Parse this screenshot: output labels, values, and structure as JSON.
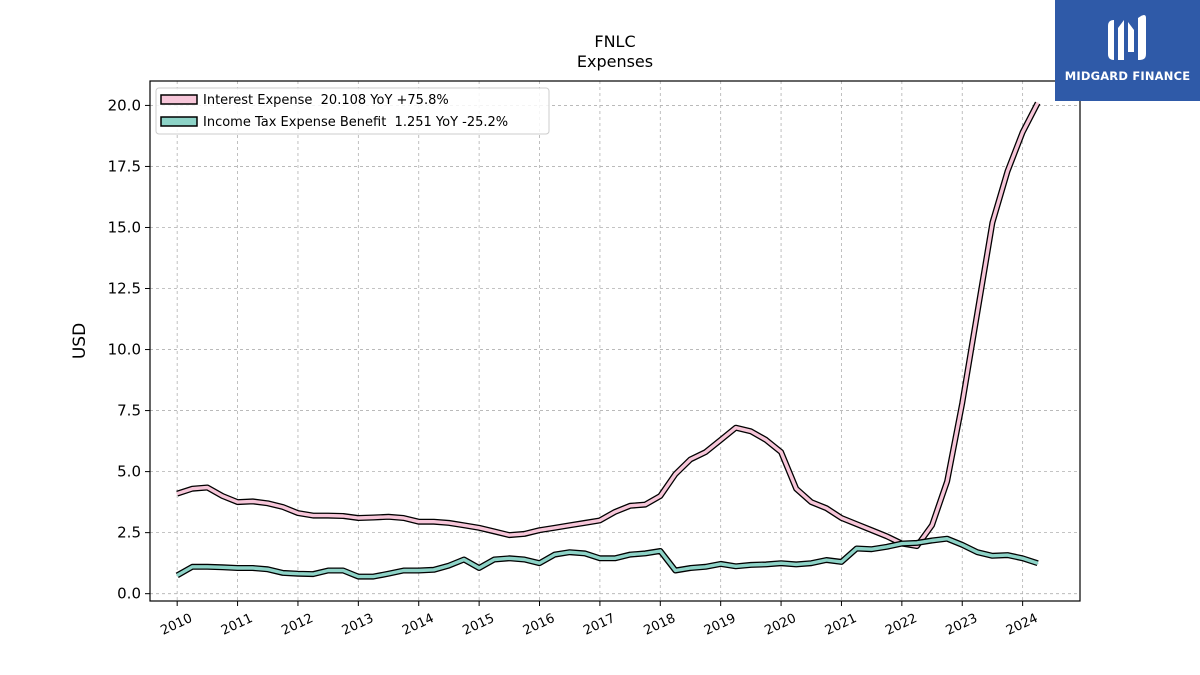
{
  "chart_data": {
    "type": "line",
    "title": "FNLC",
    "subtitle": "Expenses",
    "xlabel": "",
    "ylabel": "USD",
    "xlim": [
      2009.55,
      2024.95
    ],
    "ylim": [
      -0.3,
      21.0
    ],
    "y_ticks": [
      "0.0",
      "2.5",
      "5.0",
      "7.5",
      "10.0",
      "12.5",
      "15.0",
      "17.5",
      "20.0"
    ],
    "x_ticks": [
      "2010",
      "2011",
      "2012",
      "2013",
      "2014",
      "2015",
      "2016",
      "2017",
      "2018",
      "2019",
      "2020",
      "2021",
      "2022",
      "2023",
      "2024"
    ],
    "grid": true,
    "legend_position": "top-left",
    "series": [
      {
        "name": "Interest Expense",
        "legend": "Interest Expense  20.108 YoY +75.8%",
        "color": "#f7c6d9",
        "x": [
          2010.0,
          2010.25,
          2010.5,
          2010.75,
          2011.0,
          2011.25,
          2011.5,
          2011.75,
          2012.0,
          2012.25,
          2012.5,
          2012.75,
          2013.0,
          2013.25,
          2013.5,
          2013.75,
          2014.0,
          2014.25,
          2014.5,
          2014.75,
          2015.0,
          2015.25,
          2015.5,
          2015.75,
          2016.0,
          2016.25,
          2016.5,
          2016.75,
          2017.0,
          2017.25,
          2017.5,
          2017.75,
          2018.0,
          2018.25,
          2018.5,
          2018.75,
          2019.0,
          2019.25,
          2019.5,
          2019.75,
          2020.0,
          2020.25,
          2020.5,
          2020.75,
          2021.0,
          2021.25,
          2021.5,
          2021.75,
          2022.0,
          2022.25,
          2022.5,
          2022.75,
          2023.0,
          2023.25,
          2023.5,
          2023.75,
          2024.0,
          2024.25
        ],
        "values": [
          4.1,
          4.3,
          4.35,
          4.0,
          3.75,
          3.78,
          3.7,
          3.55,
          3.3,
          3.2,
          3.2,
          3.18,
          3.1,
          3.12,
          3.15,
          3.1,
          2.95,
          2.95,
          2.9,
          2.8,
          2.7,
          2.55,
          2.4,
          2.45,
          2.6,
          2.7,
          2.8,
          2.9,
          3.0,
          3.35,
          3.6,
          3.65,
          4.0,
          4.9,
          5.5,
          5.8,
          6.3,
          6.8,
          6.65,
          6.3,
          5.8,
          4.3,
          3.75,
          3.5,
          3.1,
          2.85,
          2.6,
          2.35,
          2.05,
          1.95,
          2.8,
          4.6,
          7.8,
          11.5,
          15.2,
          17.3,
          18.9,
          20.1
        ]
      },
      {
        "name": "Income Tax Expense Benefit",
        "legend": "Income Tax Expense Benefit  1.251 YoY -25.2%",
        "color": "#8dd3c7",
        "x": [
          2010.0,
          2010.25,
          2010.5,
          2010.75,
          2011.0,
          2011.25,
          2011.5,
          2011.75,
          2012.0,
          2012.25,
          2012.5,
          2012.75,
          2013.0,
          2013.25,
          2013.5,
          2013.75,
          2014.0,
          2014.25,
          2014.5,
          2014.75,
          2015.0,
          2015.25,
          2015.5,
          2015.75,
          2016.0,
          2016.25,
          2016.5,
          2016.75,
          2017.0,
          2017.25,
          2017.5,
          2017.75,
          2018.0,
          2018.25,
          2018.5,
          2018.75,
          2019.0,
          2019.25,
          2019.5,
          2019.75,
          2020.0,
          2020.25,
          2020.5,
          2020.75,
          2021.0,
          2021.25,
          2021.5,
          2021.75,
          2022.0,
          2022.25,
          2022.5,
          2022.75,
          2023.0,
          2023.25,
          2023.5,
          2023.75,
          2024.0,
          2024.25
        ],
        "values": [
          0.75,
          1.1,
          1.1,
          1.08,
          1.05,
          1.05,
          1.0,
          0.85,
          0.82,
          0.8,
          0.95,
          0.95,
          0.7,
          0.7,
          0.82,
          0.95,
          0.95,
          0.98,
          1.15,
          1.4,
          1.05,
          1.4,
          1.45,
          1.4,
          1.25,
          1.6,
          1.7,
          1.65,
          1.45,
          1.45,
          1.6,
          1.65,
          1.75,
          0.95,
          1.05,
          1.1,
          1.22,
          1.12,
          1.18,
          1.2,
          1.25,
          1.2,
          1.25,
          1.38,
          1.3,
          1.85,
          1.82,
          1.92,
          2.05,
          2.08,
          2.18,
          2.25,
          2.0,
          1.7,
          1.55,
          1.58,
          1.45,
          1.25
        ]
      }
    ]
  },
  "logo": {
    "text": "MIDGARD FINANCE",
    "icon": "midgard-logo-icon",
    "background": "#2f5aa8"
  }
}
